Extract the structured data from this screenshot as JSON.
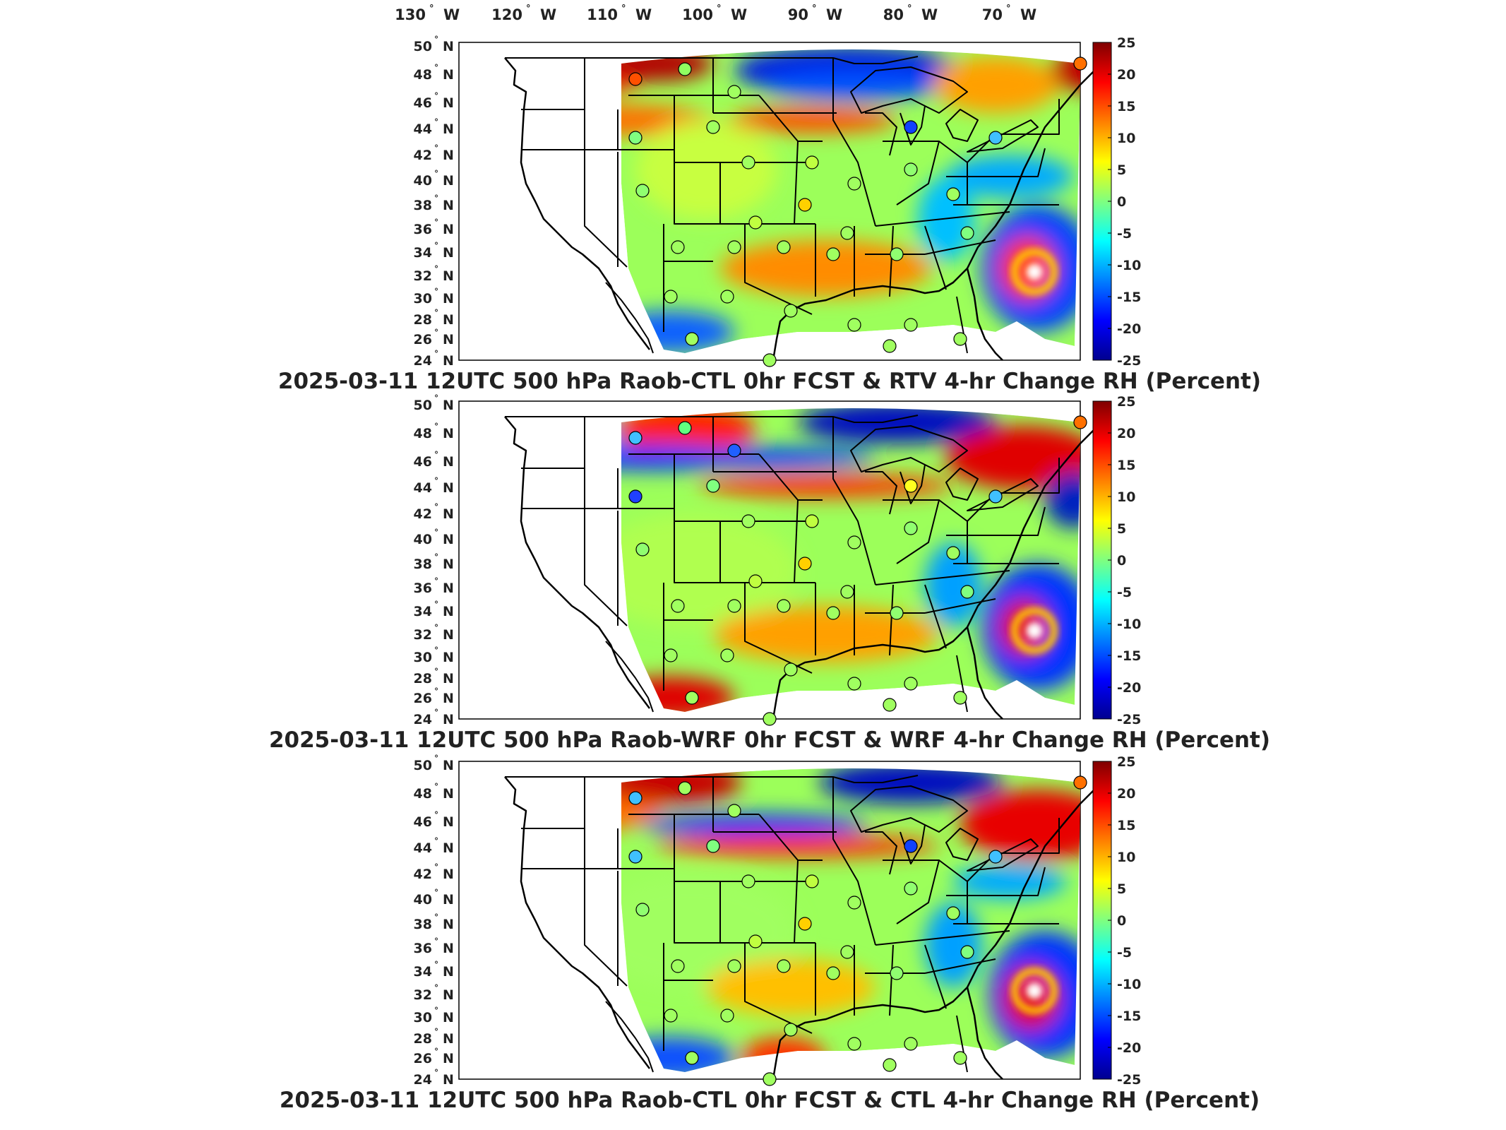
{
  "longitude_ticks": [
    {
      "deg": "130",
      "hemi": "W"
    },
    {
      "deg": "120",
      "hemi": "W"
    },
    {
      "deg": "110",
      "hemi": "W"
    },
    {
      "deg": "100",
      "hemi": "W"
    },
    {
      "deg": "90",
      "hemi": "W"
    },
    {
      "deg": "80",
      "hemi": "W"
    },
    {
      "deg": "70",
      "hemi": "W"
    }
  ],
  "latitude_ticks": [
    {
      "deg": "50",
      "hemi": "N"
    },
    {
      "deg": "48",
      "hemi": "N"
    },
    {
      "deg": "46",
      "hemi": "N"
    },
    {
      "deg": "44",
      "hemi": "N"
    },
    {
      "deg": "42",
      "hemi": "N"
    },
    {
      "deg": "40",
      "hemi": "N"
    },
    {
      "deg": "38",
      "hemi": "N"
    },
    {
      "deg": "36",
      "hemi": "N"
    },
    {
      "deg": "34",
      "hemi": "N"
    },
    {
      "deg": "32",
      "hemi": "N"
    },
    {
      "deg": "30",
      "hemi": "N"
    },
    {
      "deg": "28",
      "hemi": "N"
    },
    {
      "deg": "26",
      "hemi": "N"
    },
    {
      "deg": "24",
      "hemi": "N"
    }
  ],
  "colorbar": {
    "ticks": [
      "25",
      "20",
      "15",
      "10",
      "5",
      "0",
      "-5",
      "-10",
      "-15",
      "-20",
      "-25"
    ],
    "range": [
      -25,
      25
    ],
    "colormap": "jet"
  },
  "panels": [
    {
      "title": "2025-03-11 12UTC 500 hPa Raob-CTL 0hr FCST & RTV 4-hr Change RH (Percent)"
    },
    {
      "title": "2025-03-11 12UTC 500 hPa Raob-WRF 0hr FCST & WRF 4-hr Change RH (Percent)"
    },
    {
      "title": "2025-03-11 12UTC 500 hPa Raob-CTL 0hr FCST & CTL 4-hr Change RH (Percent)"
    }
  ],
  "colors": {
    "jet_dark_red": "#7f0000",
    "jet_red": "#ff0000",
    "jet_yellow": "#ffff00",
    "jet_cyan": "#00ffff",
    "jet_blue": "#0000ff",
    "jet_dark_blue": "#00008f",
    "outline": "#000000"
  }
}
